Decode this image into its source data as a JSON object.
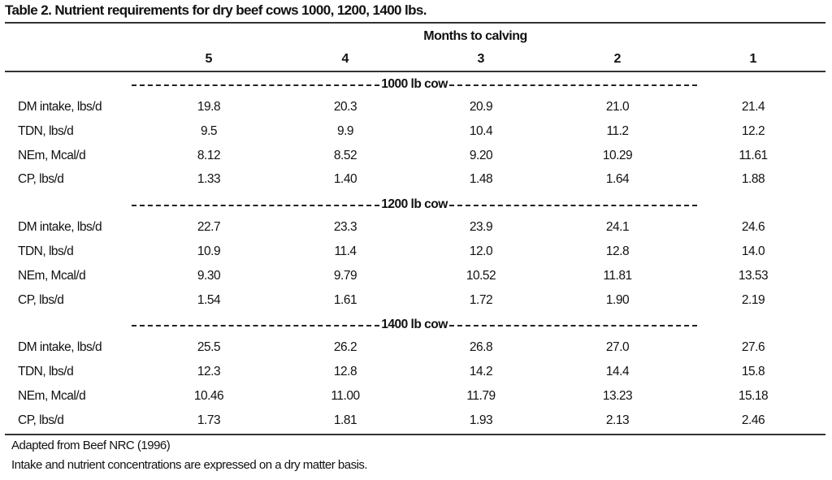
{
  "title": "Table 2.  Nutrient requirements for dry beef cows 1000, 1200, 1400 lbs.",
  "column_group_label": "Months to calving",
  "columns": [
    "5",
    "4",
    "3",
    "2",
    "1"
  ],
  "sections": [
    {
      "label": "1000 lb cow",
      "rows": [
        {
          "label": "DM intake, lbs/d",
          "values": [
            "19.8",
            "20.3",
            "20.9",
            "21.0",
            "21.4"
          ]
        },
        {
          "label": "TDN, lbs/d",
          "values": [
            "9.5",
            "9.9",
            "10.4",
            "11.2",
            "12.2"
          ]
        },
        {
          "label": "NEm, Mcal/d",
          "values": [
            "8.12",
            "8.52",
            "9.20",
            "10.29",
            "11.61"
          ]
        },
        {
          "label": "CP, lbs/d",
          "values": [
            "1.33",
            "1.40",
            "1.48",
            "1.64",
            "1.88"
          ]
        }
      ]
    },
    {
      "label": "1200 lb cow",
      "rows": [
        {
          "label": "DM intake, lbs/d",
          "values": [
            "22.7",
            "23.3",
            "23.9",
            "24.1",
            "24.6"
          ]
        },
        {
          "label": "TDN, lbs/d",
          "values": [
            "10.9",
            "11.4",
            "12.0",
            "12.8",
            "14.0"
          ]
        },
        {
          "label": "NEm, Mcal/d",
          "values": [
            "9.30",
            "9.79",
            "10.52",
            "11.81",
            "13.53"
          ]
        },
        {
          "label": "CP, lbs/d",
          "values": [
            "1.54",
            "1.61",
            "1.72",
            "1.90",
            "2.19"
          ]
        }
      ]
    },
    {
      "label": "1400 lb cow",
      "rows": [
        {
          "label": "DM intake, lbs/d",
          "values": [
            "25.5",
            "26.2",
            "26.8",
            "27.0",
            "27.6"
          ]
        },
        {
          "label": "TDN, lbs/d",
          "values": [
            "12.3",
            "12.8",
            "14.2",
            "14.4",
            "15.8"
          ]
        },
        {
          "label": "NEm, Mcal/d",
          "values": [
            "10.46",
            "11.00",
            "11.79",
            "13.23",
            "15.18"
          ]
        },
        {
          "label": "CP, lbs/d",
          "values": [
            "1.73",
            "1.81",
            "1.93",
            "2.13",
            "2.46"
          ]
        }
      ]
    }
  ],
  "footnotes": [
    "Adapted from Beef NRC (1996)",
    "Intake and nutrient concentrations are expressed on a dry matter basis."
  ]
}
